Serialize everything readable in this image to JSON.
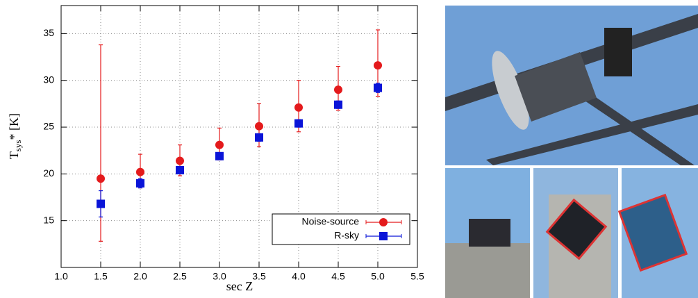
{
  "chart_data": {
    "type": "errorbar",
    "xlabel": "sec Z",
    "ylabel": {
      "main": "T",
      "sub": "sys",
      "rest": "* [K]"
    },
    "x": [
      1.5,
      2.0,
      2.5,
      3.0,
      3.5,
      4.0,
      4.5,
      5.0
    ],
    "series": [
      {
        "name": "Noise-source",
        "color": "#e41a1c",
        "marker": "circle",
        "values": [
          19.5,
          20.2,
          21.4,
          23.1,
          25.1,
          27.1,
          29.0,
          31.6
        ],
        "error_minus": [
          6.7,
          1.7,
          1.6,
          1.6,
          2.2,
          2.6,
          2.2,
          3.3
        ],
        "error_plus": [
          14.3,
          1.9,
          1.7,
          1.8,
          2.4,
          2.9,
          2.5,
          3.8
        ]
      },
      {
        "name": "R-sky",
        "color": "#0a14d8",
        "marker": "square",
        "values": [
          16.8,
          19.0,
          20.4,
          21.9,
          23.9,
          25.4,
          27.4,
          29.2
        ],
        "error_minus": [
          1.4,
          0.5,
          0.4,
          0.3,
          0.4,
          0.4,
          0.4,
          0.5
        ],
        "error_plus": [
          1.4,
          0.5,
          0.4,
          0.3,
          0.4,
          0.4,
          0.4,
          0.5
        ]
      }
    ],
    "xlim": [
      1.0,
      5.5
    ],
    "xticks": [
      {
        "value": 1.0,
        "label": "1.0"
      },
      {
        "value": 1.5,
        "label": "1.5"
      },
      {
        "value": 2.0,
        "label": "2.0"
      },
      {
        "value": 2.5,
        "label": "2.5"
      },
      {
        "value": 3.0,
        "label": "3.0"
      },
      {
        "value": 3.5,
        "label": "3.5"
      },
      {
        "value": 4.0,
        "label": "4.0"
      },
      {
        "value": 4.5,
        "label": "4.5"
      },
      {
        "value": 5.0,
        "label": "5.0"
      },
      {
        "value": 5.5,
        "label": "5.5"
      }
    ],
    "ylim": [
      10,
      38
    ],
    "yticks": [
      15,
      20,
      25,
      30,
      35
    ],
    "grid": true,
    "legend": "lower right"
  }
}
